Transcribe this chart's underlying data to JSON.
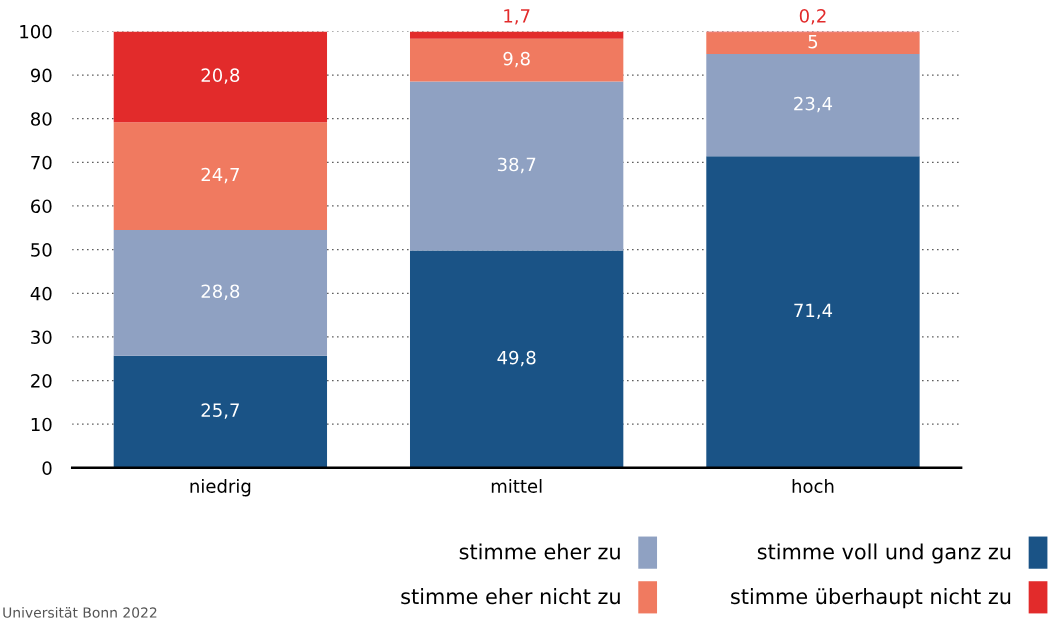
{
  "chart_data": {
    "type": "bar",
    "stacked": true,
    "categories": [
      "niedrig",
      "mittel",
      "hoch"
    ],
    "series": [
      {
        "name": "stimme voll und ganz zu",
        "color": "#1a5386",
        "values": [
          25.7,
          49.8,
          71.4
        ],
        "value_labels": [
          "25,7",
          "49,8",
          "71,4"
        ]
      },
      {
        "name": "stimme eher zu",
        "color": "#8fa1c2",
        "values": [
          28.8,
          38.7,
          23.4
        ],
        "value_labels": [
          "28,8",
          "38,7",
          "23,4"
        ]
      },
      {
        "name": "stimme eher nicht zu",
        "color": "#f07a60",
        "values": [
          24.7,
          9.8,
          5
        ],
        "value_labels": [
          "24,7",
          "9,8",
          "5"
        ]
      },
      {
        "name": "stimme überhaupt nicht zu",
        "color": "#e22b2b",
        "values": [
          20.8,
          1.7,
          0.2
        ],
        "value_labels": [
          "20,8",
          "1,7",
          "0,2"
        ]
      }
    ],
    "ylim": [
      0,
      100
    ],
    "yticks": [
      0,
      10,
      20,
      30,
      40,
      50,
      60,
      70,
      80,
      90,
      100
    ],
    "grid": "y",
    "legend": "bottom right",
    "annotations": [
      "Universität Bonn 2022"
    ]
  }
}
